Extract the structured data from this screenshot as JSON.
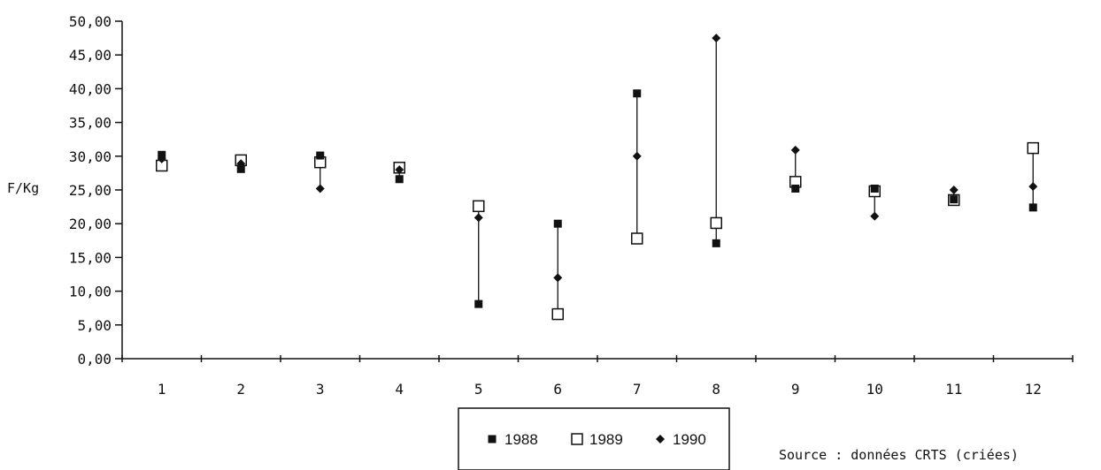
{
  "chart_data": {
    "type": "scatter",
    "ylabel": "F/Kg",
    "xlabel": "",
    "title": "",
    "categories": [
      "1",
      "2",
      "3",
      "4",
      "5",
      "6",
      "7",
      "8",
      "9",
      "10",
      "11",
      "12"
    ],
    "y_ticks": [
      "0,00",
      "5,00",
      "10,00",
      "15,00",
      "20,00",
      "25,00",
      "30,00",
      "35,00",
      "40,00",
      "45,00",
      "50,00"
    ],
    "ylim": [
      0,
      50
    ],
    "grid": false,
    "legend_position": "bottom-center",
    "series": [
      {
        "name": "1988",
        "marker": "filled-square",
        "values": [
          30.2,
          28.1,
          30.1,
          26.6,
          8.1,
          20.0,
          39.3,
          17.1,
          25.2,
          25.2,
          23.6,
          22.4
        ]
      },
      {
        "name": "1989",
        "marker": "open-square",
        "values": [
          28.6,
          29.4,
          29.1,
          28.3,
          22.6,
          6.6,
          17.8,
          20.1,
          26.2,
          24.8,
          23.5,
          31.2
        ]
      },
      {
        "name": "1990",
        "marker": "filled-diamond",
        "values": [
          29.6,
          28.9,
          25.2,
          28.0,
          20.9,
          12.0,
          30.0,
          47.5,
          30.9,
          21.1,
          25.0,
          25.5
        ]
      }
    ],
    "source": "Source : données CRTS (criées)"
  }
}
